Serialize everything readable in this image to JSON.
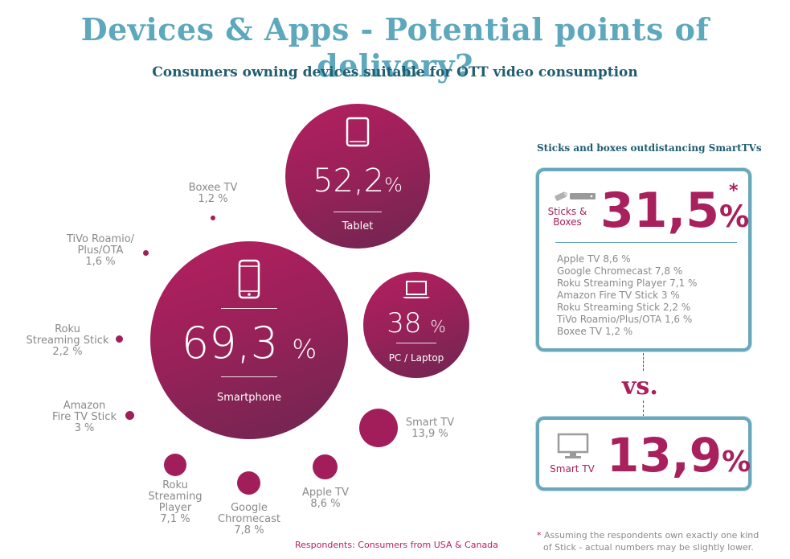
{
  "title": "Devices & Apps - Potential points of delivery?",
  "subtitle": "Consumers owning devices suitable for OTT video consumption",
  "chart_data": {
    "type": "bubble",
    "title": "Consumers owning devices suitable for OTT video consumption",
    "points": [
      {
        "label": "Smartphone",
        "display": "69,3",
        "value": 69.3,
        "unit": "%"
      },
      {
        "label": "Tablet",
        "display": "52,2",
        "value": 52.2,
        "unit": "%"
      },
      {
        "label": "PC / Laptop",
        "display": "38",
        "value": 38,
        "unit": "%"
      },
      {
        "label": "Smart TV",
        "display": "13,9 %",
        "value": 13.9
      },
      {
        "label": "Apple TV",
        "display": "8,6 %",
        "value": 8.6
      },
      {
        "label": "Google Chromecast",
        "display": "7,8 %",
        "value": 7.8
      },
      {
        "label": "Roku Streaming Player",
        "display": "7,1 %",
        "value": 7.1
      },
      {
        "label": "Amazon Fire TV Stick",
        "display": "3 %",
        "value": 3
      },
      {
        "label": "Roku Streaming Stick",
        "display": "2,2 %",
        "value": 2.2
      },
      {
        "label": "TiVo Roamio/ Plus/OTA",
        "display": "1,6 %",
        "value": 1.6
      },
      {
        "label": "Boxee TV",
        "display": "1,2 %",
        "value": 1.2
      }
    ],
    "color": "#a21e5a"
  },
  "bubbles": {
    "smartphone": {
      "value": "69,3",
      "unit": "%",
      "label": "Smartphone"
    },
    "tablet": {
      "value": "52,2",
      "unit": "%",
      "label": "Tablet"
    },
    "pc": {
      "value": "38",
      "unit": "%",
      "label": "PC / Laptop"
    }
  },
  "small_labels": {
    "boxee": [
      "Boxee TV",
      "1,2 %"
    ],
    "tivo": [
      "TiVo Roamio/",
      "Plus/OTA",
      "1,6 %"
    ],
    "roku_stick": [
      "Roku",
      "Streaming Stick",
      "2,2 %"
    ],
    "amazon": [
      "Amazon",
      "Fire TV Stick",
      "3 %"
    ],
    "roku_player": [
      "Roku",
      "Streaming",
      "Player",
      "7,1 %"
    ],
    "chromecast": [
      "Google",
      "Chromecast",
      "7,8 %"
    ],
    "apple": [
      "Apple TV",
      "8,6 %"
    ],
    "smarttv": [
      "Smart TV",
      "13,9 %"
    ]
  },
  "side": {
    "heading": "Sticks and boxes outdistancing SmartTVs",
    "sticks_label": [
      "Sticks &",
      "Boxes"
    ],
    "sticks_value": "31,5",
    "sticks_unit": "%",
    "asterisk": "*",
    "list": [
      "Apple TV 8,6 %",
      "Google Chromecast 7,8 %",
      "Roku Streaming Player 7,1 %",
      "Amazon Fire TV Stick 3 %",
      "Roku Streaming Stick 2,2 %",
      "TiVo Roamio/Plus/OTA 1,6 %",
      "Boxee TV 1,2 %"
    ],
    "vs": "vs.",
    "smarttv_label": "Smart TV",
    "smarttv_value": "13,9",
    "smarttv_unit": "%"
  },
  "footnote": "Respondents: Consumers from USA & Canada",
  "note": {
    "star": "*",
    "line1": "Assuming the respondents own exactly one kind",
    "line2": "of Stick - actual numbers may be slightly lower."
  },
  "colors": {
    "accent": "#a8205c",
    "title": "#5ea8bd",
    "subtitle": "#205d70",
    "box_border": "#69a8ba",
    "text_grey": "#8a8a8a"
  },
  "icons": {
    "tablet": "tablet-icon",
    "smartphone": "smartphone-icon",
    "laptop": "laptop-icon",
    "stick": "usb-stick-icon",
    "tv": "tv-icon"
  }
}
